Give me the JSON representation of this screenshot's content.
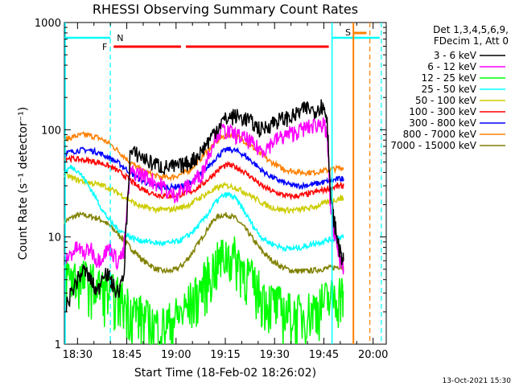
{
  "chart_data": {
    "type": "line",
    "title": "RHESSI Observing Summary Count Rates",
    "xlabel": "Start Time (18-Feb-02 18:26:02)",
    "ylabel": "Count Rate (s⁻¹ detector⁻¹)",
    "x_unit": "minutes after 18:26:02",
    "xlim": [
      0,
      98
    ],
    "ylim": [
      1,
      1000
    ],
    "yscale": "log",
    "x_ticks": [
      {
        "label": "18:30",
        "value": 4
      },
      {
        "label": "18:45",
        "value": 19
      },
      {
        "label": "19:00",
        "value": 34
      },
      {
        "label": "19:15",
        "value": 49
      },
      {
        "label": "19:30",
        "value": 64
      },
      {
        "label": "19:45",
        "value": 79
      },
      {
        "label": "20:00",
        "value": 94
      }
    ],
    "y_ticks": [
      {
        "label": "1",
        "value": 1
      },
      {
        "label": "10",
        "value": 10
      },
      {
        "label": "100",
        "value": 100
      },
      {
        "label": "1000",
        "value": 1000
      }
    ],
    "legend": {
      "position": "right",
      "header": [
        "Det 1,3,4,5,6,9,",
        "FDecim 1, Att 0"
      ]
    },
    "annotations": {
      "N": "N",
      "F": "F",
      "S": "S"
    },
    "footer": "13-Oct-2021 15:30",
    "series": [
      {
        "name": "3 - 6 keV",
        "color": "#000000",
        "x": [
          0,
          2,
          4,
          6,
          8,
          10,
          12,
          14,
          16,
          18,
          20,
          22,
          24,
          26,
          28,
          30,
          32,
          34,
          36,
          38,
          40,
          42,
          44,
          46,
          48,
          50,
          52,
          54,
          56,
          58,
          60,
          62,
          64,
          66,
          68,
          70,
          72,
          74,
          76,
          78,
          79,
          80,
          81,
          82,
          83,
          84,
          85
        ],
        "y": [
          2,
          3,
          4,
          5,
          4,
          3,
          5,
          4,
          3,
          4,
          60,
          60,
          55,
          50,
          48,
          45,
          45,
          45,
          47,
          50,
          55,
          65,
          80,
          100,
          120,
          130,
          135,
          130,
          125,
          110,
          100,
          110,
          120,
          125,
          130,
          135,
          150,
          160,
          150,
          170,
          160,
          130,
          25,
          15,
          10,
          7,
          6
        ]
      },
      {
        "name": "6 - 12 keV",
        "color": "#ff00ff",
        "x": [
          0,
          2,
          4,
          6,
          8,
          10,
          12,
          14,
          16,
          18,
          20,
          22,
          24,
          26,
          28,
          30,
          32,
          34,
          36,
          38,
          40,
          42,
          44,
          46,
          48,
          50,
          52,
          54,
          56,
          58,
          60,
          62,
          64,
          66,
          68,
          70,
          72,
          74,
          76,
          78,
          79,
          80,
          81,
          82,
          83,
          84,
          85
        ],
        "y": [
          6,
          7,
          8,
          7,
          8,
          6,
          7,
          8,
          6,
          7,
          40,
          40,
          38,
          35,
          32,
          30,
          25,
          25,
          28,
          30,
          35,
          40,
          60,
          90,
          100,
          95,
          90,
          85,
          80,
          70,
          65,
          70,
          80,
          85,
          90,
          95,
          100,
          105,
          110,
          115,
          110,
          90,
          20,
          12,
          8,
          6,
          5
        ]
      },
      {
        "name": "12 - 25 keV",
        "color": "#00ff00",
        "x": [
          0,
          2,
          4,
          6,
          8,
          10,
          12,
          14,
          16,
          18,
          20,
          22,
          24,
          26,
          28,
          30,
          32,
          34,
          36,
          38,
          40,
          42,
          44,
          46,
          48,
          50,
          52,
          54,
          56,
          58,
          60,
          62,
          64,
          66,
          68,
          70,
          72,
          74,
          76,
          78,
          80,
          82,
          84,
          85
        ],
        "y": [
          4.5,
          4.3,
          4.2,
          4.0,
          3.8,
          3.5,
          3.2,
          3.0,
          2.8,
          2.5,
          2.2,
          2.0,
          1.8,
          1.6,
          1.5,
          1.5,
          1.6,
          1.8,
          2.0,
          2.4,
          2.8,
          3.5,
          4.5,
          5.5,
          6.5,
          7,
          6.5,
          5.5,
          4.5,
          3.5,
          3,
          2.6,
          2.4,
          2.2,
          2,
          1.9,
          1.9,
          2,
          2.2,
          2.4,
          2.6,
          2.8,
          3,
          3
        ]
      },
      {
        "name": "25 - 50 keV",
        "color": "#00ffff",
        "x": [
          0,
          2,
          4,
          6,
          8,
          10,
          12,
          14,
          16,
          18,
          20,
          22,
          24,
          26,
          28,
          30,
          32,
          34,
          36,
          38,
          40,
          42,
          44,
          46,
          48,
          50,
          52,
          54,
          56,
          58,
          60,
          62,
          64,
          66,
          68,
          70,
          72,
          74,
          76,
          78,
          80,
          82,
          84,
          85
        ],
        "y": [
          40,
          45,
          42,
          35,
          28,
          22,
          17,
          14,
          12,
          11,
          10,
          9.5,
          9.2,
          9,
          8.8,
          8.7,
          8.8,
          9,
          9.5,
          10.5,
          12,
          14,
          17,
          21,
          24,
          25,
          23,
          19,
          15,
          12,
          10,
          9,
          8.5,
          8,
          7.8,
          7.8,
          8,
          8.3,
          8.7,
          9,
          9.3,
          9.6,
          10,
          10
        ]
      },
      {
        "name": "50 - 100 keV",
        "color": "#cccc00",
        "x": [
          0,
          2,
          4,
          6,
          8,
          10,
          12,
          14,
          16,
          18,
          20,
          22,
          24,
          26,
          28,
          30,
          32,
          34,
          36,
          38,
          40,
          42,
          44,
          46,
          48,
          50,
          52,
          54,
          56,
          58,
          60,
          62,
          64,
          66,
          68,
          70,
          72,
          74,
          76,
          78,
          80,
          82,
          84,
          85
        ],
        "y": [
          38,
          36,
          34,
          33,
          32,
          31,
          30,
          28,
          26,
          24,
          22,
          20,
          19,
          18.5,
          18,
          18,
          18,
          18.5,
          19,
          20,
          22,
          24,
          26,
          28,
          30,
          30,
          29,
          27,
          25,
          23,
          21,
          19.5,
          18.5,
          18,
          17.8,
          17.8,
          18,
          18.5,
          19,
          20,
          21,
          22,
          23,
          23
        ]
      },
      {
        "name": "100 - 300 keV",
        "color": "#ff0000",
        "x": [
          0,
          2,
          4,
          6,
          8,
          10,
          12,
          14,
          16,
          18,
          20,
          22,
          24,
          26,
          28,
          30,
          32,
          34,
          36,
          38,
          40,
          42,
          44,
          46,
          48,
          50,
          52,
          54,
          56,
          58,
          60,
          62,
          64,
          66,
          68,
          70,
          72,
          74,
          76,
          78,
          80,
          82,
          84,
          85
        ],
        "y": [
          55,
          54,
          53,
          52,
          51,
          50,
          48,
          45,
          42,
          38,
          34,
          30,
          28,
          26,
          25,
          24,
          24,
          24.5,
          25,
          26,
          28,
          31,
          35,
          40,
          45,
          47,
          45,
          42,
          38,
          34,
          30,
          28,
          26,
          25,
          24,
          24,
          24.5,
          25,
          26,
          27,
          28,
          29,
          30,
          30
        ]
      },
      {
        "name": "300 - 800 keV",
        "color": "#0000ff",
        "x": [
          0,
          2,
          4,
          6,
          8,
          10,
          12,
          14,
          16,
          18,
          20,
          22,
          24,
          26,
          28,
          30,
          32,
          34,
          36,
          38,
          40,
          42,
          44,
          46,
          48,
          50,
          52,
          54,
          56,
          58,
          60,
          62,
          64,
          66,
          68,
          70,
          72,
          74,
          76,
          78,
          80,
          82,
          84,
          85
        ],
        "y": [
          60,
          62,
          64,
          65,
          64,
          62,
          58,
          54,
          50,
          45,
          40,
          36,
          33,
          31,
          30,
          29,
          29,
          29.5,
          30,
          32,
          35,
          40,
          46,
          54,
          62,
          66,
          64,
          60,
          54,
          48,
          42,
          38,
          35,
          33,
          31,
          30,
          30,
          30.5,
          31,
          32,
          33,
          34,
          35,
          35
        ]
      },
      {
        "name": "800 - 7000 keV",
        "color": "#ff8000",
        "x": [
          0,
          2,
          4,
          6,
          8,
          10,
          12,
          14,
          16,
          18,
          20,
          22,
          24,
          26,
          28,
          30,
          32,
          34,
          36,
          38,
          40,
          42,
          44,
          46,
          48,
          50,
          52,
          54,
          56,
          58,
          60,
          62,
          64,
          66,
          68,
          70,
          72,
          74,
          76,
          78,
          80,
          82,
          84,
          85
        ],
        "y": [
          80,
          85,
          88,
          90,
          88,
          85,
          80,
          73,
          65,
          57,
          50,
          45,
          41,
          39,
          37,
          36,
          36,
          37,
          39,
          42,
          48,
          56,
          66,
          76,
          85,
          90,
          88,
          82,
          74,
          66,
          58,
          52,
          48,
          44,
          42,
          41,
          40,
          40,
          40,
          41,
          42,
          43,
          44,
          44
        ]
      },
      {
        "name": "7000 - 15000 keV",
        "color": "#808000",
        "x": [
          0,
          2,
          4,
          6,
          8,
          10,
          12,
          14,
          16,
          18,
          20,
          22,
          24,
          26,
          28,
          30,
          32,
          34,
          36,
          38,
          40,
          42,
          44,
          46,
          48,
          50,
          52,
          54,
          56,
          58,
          60,
          62,
          64,
          66,
          68,
          70,
          72,
          74,
          76,
          78,
          80,
          82,
          84,
          85
        ],
        "y": [
          14,
          15,
          16,
          16,
          15.5,
          15,
          14,
          12.5,
          11,
          9.5,
          8,
          7,
          6,
          5.5,
          5,
          4.8,
          4.8,
          5,
          5.5,
          6.5,
          8,
          10,
          12.5,
          15,
          16,
          16,
          15,
          13,
          11,
          9,
          7.5,
          6.5,
          5.8,
          5.3,
          5,
          4.8,
          4.8,
          4.8,
          4.9,
          5,
          5.1,
          5.2,
          5.3,
          5.3
        ]
      }
    ]
  }
}
